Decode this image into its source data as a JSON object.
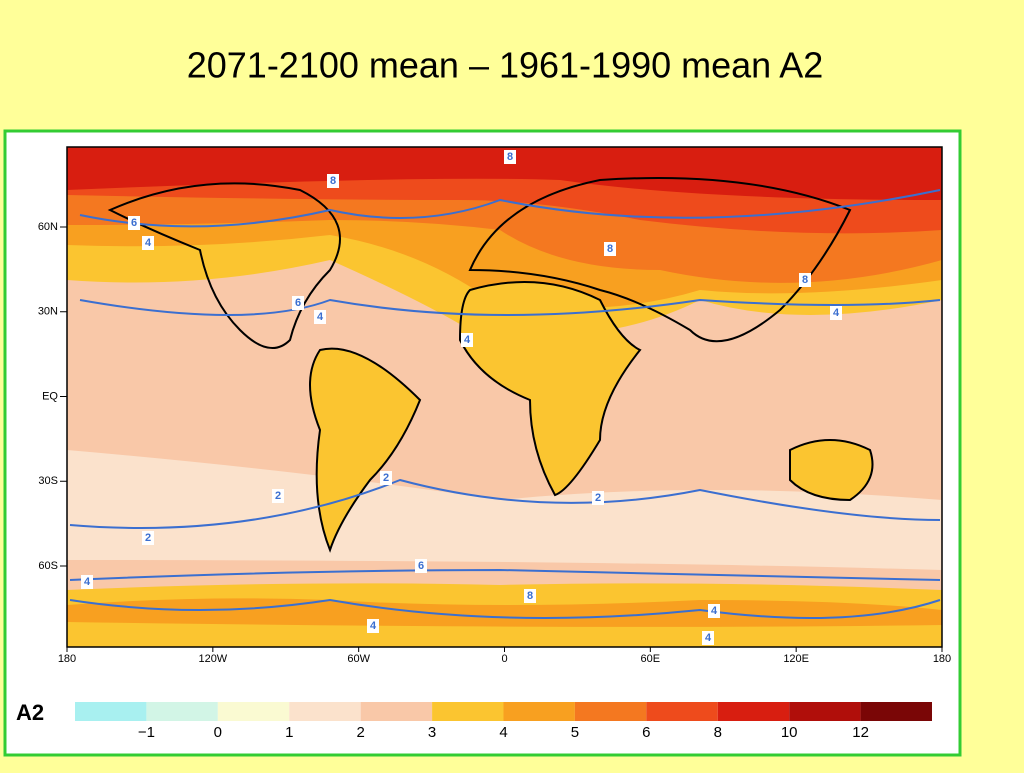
{
  "title": "2071-2100 mean – 1961-1990 mean A2",
  "map": {
    "lat_labels": [
      "60N",
      "30N",
      "EQ",
      "30S",
      "60S"
    ],
    "lon_labels": [
      "180",
      "120W",
      "60W",
      "0",
      "60E",
      "120E",
      "180"
    ],
    "contour_labels": [
      "8",
      "8",
      "6",
      "4",
      "6",
      "4",
      "4",
      "8",
      "8",
      "4",
      "2",
      "2",
      "2",
      "2",
      "6",
      "4",
      "8",
      "4",
      "4",
      "4"
    ]
  },
  "legend": {
    "label": "A2",
    "ticks": [
      "−1",
      "0",
      "1",
      "2",
      "3",
      "4",
      "5",
      "6",
      "8",
      "10",
      "12"
    ],
    "colors": [
      "#a8f0f0",
      "#d2f5e6",
      "#fafad2",
      "#fbe2cc",
      "#f9c8a8",
      "#fbc530",
      "#f8a020",
      "#f47820",
      "#ee4b1c",
      "#d81e10",
      "#b00e0a",
      "#7a0606"
    ]
  }
}
